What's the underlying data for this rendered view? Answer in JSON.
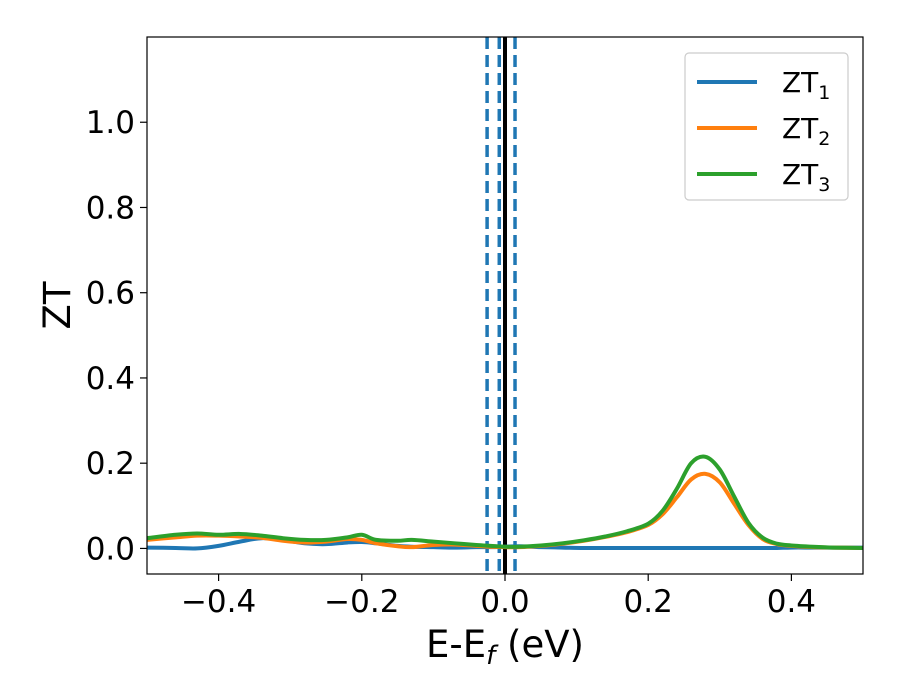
{
  "chart_data": {
    "type": "line",
    "title": "",
    "xlabel": {
      "main": "E-E",
      "sub": "f",
      "suffix": " (eV)"
    },
    "ylabel": "ZT",
    "xlim": [
      -0.5,
      0.5
    ],
    "ylim": [
      -0.06,
      1.2
    ],
    "xticks": [
      -0.4,
      -0.2,
      0.0,
      0.2,
      0.4
    ],
    "xtick_labels": [
      "−0.4",
      "−0.2",
      "0.0",
      "0.2",
      "0.4"
    ],
    "yticks": [
      0.0,
      0.2,
      0.4,
      0.6,
      0.8,
      1.0
    ],
    "ytick_labels": [
      "0.0",
      "0.2",
      "0.4",
      "0.6",
      "0.8",
      "1.0"
    ],
    "grid": false,
    "legend_position": "top-right",
    "vlines": [
      {
        "x": 0.0,
        "style": "solid",
        "color": "#000000"
      },
      {
        "x": -0.025,
        "style": "dashed",
        "color": "#1f77b4"
      },
      {
        "x": -0.008,
        "style": "dashed",
        "color": "#1f77b4"
      },
      {
        "x": 0.014,
        "style": "dashed",
        "color": "#1f77b4"
      }
    ],
    "x": [
      -0.5,
      -0.46,
      -0.43,
      -0.4,
      -0.37,
      -0.34,
      -0.31,
      -0.28,
      -0.25,
      -0.22,
      -0.2,
      -0.18,
      -0.15,
      -0.13,
      -0.1,
      -0.07,
      -0.04,
      -0.02,
      0.0,
      0.02,
      0.05,
      0.08,
      0.11,
      0.14,
      0.17,
      0.2,
      0.22,
      0.24,
      0.26,
      0.28,
      0.3,
      0.32,
      0.34,
      0.36,
      0.38,
      0.4,
      0.43,
      0.46,
      0.5
    ],
    "series": [
      {
        "name": "ZT",
        "sub": "1",
        "color": "#1f77b4",
        "values": [
          0.002,
          0.001,
          0.0,
          0.006,
          0.016,
          0.024,
          0.02,
          0.012,
          0.01,
          0.014,
          0.015,
          0.012,
          0.006,
          0.004,
          0.003,
          0.002,
          0.003,
          0.003,
          0.004,
          0.005,
          0.003,
          0.002,
          0.001,
          0.001,
          0.001,
          0.001,
          0.001,
          0.001,
          0.001,
          0.001,
          0.001,
          0.001,
          0.001,
          0.001,
          0.001,
          0.002,
          0.002,
          0.002,
          0.002
        ]
      },
      {
        "name": "ZT",
        "sub": "2",
        "color": "#ff7f0e",
        "values": [
          0.02,
          0.026,
          0.03,
          0.03,
          0.028,
          0.025,
          0.018,
          0.014,
          0.016,
          0.022,
          0.02,
          0.012,
          0.005,
          0.003,
          0.008,
          0.009,
          0.006,
          0.004,
          0.003,
          0.003,
          0.006,
          0.011,
          0.018,
          0.027,
          0.038,
          0.055,
          0.08,
          0.12,
          0.162,
          0.175,
          0.155,
          0.105,
          0.055,
          0.022,
          0.01,
          0.006,
          0.003,
          0.002,
          0.001
        ]
      },
      {
        "name": "ZT",
        "sub": "3",
        "color": "#2ca02c",
        "values": [
          0.024,
          0.032,
          0.035,
          0.032,
          0.034,
          0.03,
          0.024,
          0.02,
          0.02,
          0.026,
          0.032,
          0.02,
          0.018,
          0.02,
          0.016,
          0.012,
          0.008,
          0.006,
          0.004,
          0.004,
          0.007,
          0.012,
          0.019,
          0.028,
          0.04,
          0.058,
          0.088,
          0.14,
          0.2,
          0.215,
          0.185,
          0.122,
          0.06,
          0.025,
          0.011,
          0.007,
          0.004,
          0.002,
          0.001
        ]
      }
    ]
  }
}
